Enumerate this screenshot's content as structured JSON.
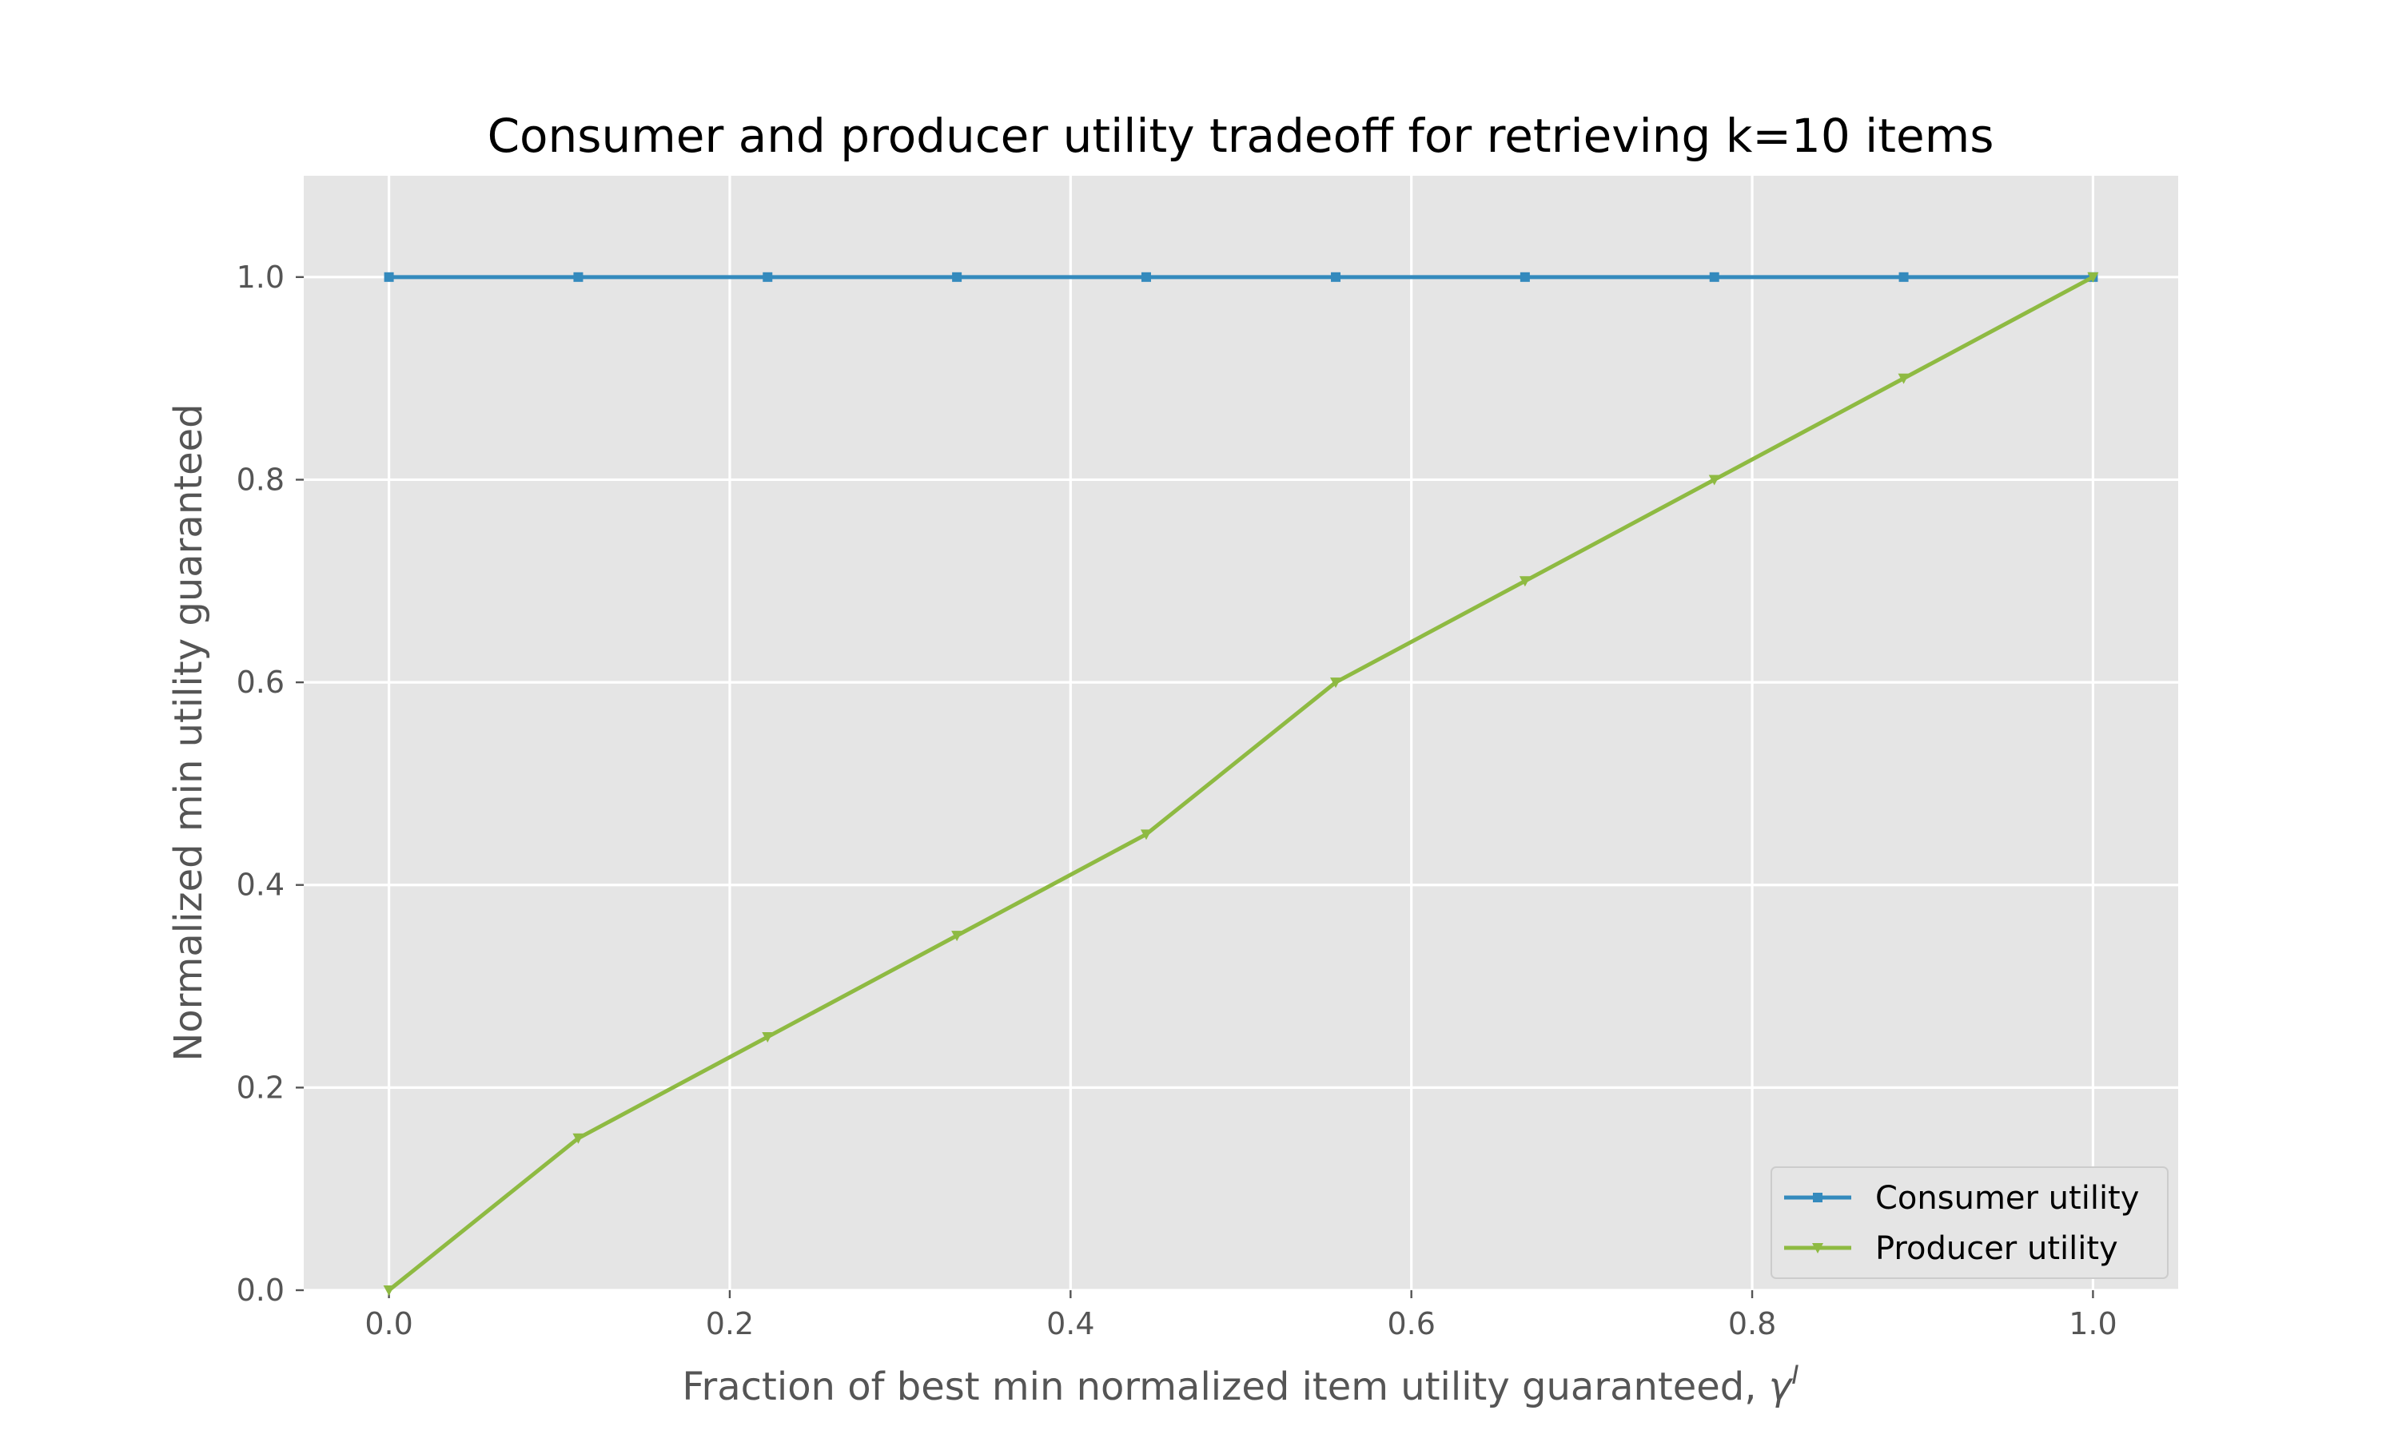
{
  "chart_data": {
    "type": "line",
    "title": "Consumer and producer utility tradeoff for retrieving k=10 items",
    "xlabel_text": "Fraction of best min normalized item utility guaranteed, ",
    "xlabel_symbol": "γ",
    "xlabel_superscript": "I",
    "ylabel": "Normalized min utility guaranteed",
    "xlim": [
      -0.05,
      1.05
    ],
    "ylim": [
      0.0,
      1.1
    ],
    "xticks": [
      0.0,
      0.2,
      0.4,
      0.6,
      0.8,
      1.0
    ],
    "xtick_labels": [
      "0.0",
      "0.2",
      "0.4",
      "0.6",
      "0.8",
      "1.0"
    ],
    "yticks": [
      0.0,
      0.2,
      0.4,
      0.6,
      0.8,
      1.0
    ],
    "ytick_labels": [
      "0.0",
      "0.2",
      "0.4",
      "0.6",
      "0.8",
      "1.0"
    ],
    "grid": true,
    "legend_position": "lower right",
    "x": [
      0.0,
      0.1111,
      0.2222,
      0.3333,
      0.4444,
      0.5556,
      0.6667,
      0.7778,
      0.8889,
      1.0
    ],
    "series": [
      {
        "name": "Consumer utility",
        "color": "#348abd",
        "marker": "square",
        "values": [
          1.0,
          1.0,
          1.0,
          1.0,
          1.0,
          1.0,
          1.0,
          1.0,
          1.0,
          1.0
        ]
      },
      {
        "name": "Producer utility",
        "color": "#8eba42",
        "marker": "triangle-down",
        "values": [
          0.0,
          0.15,
          0.25,
          0.35,
          0.45,
          0.6,
          0.7,
          0.8,
          0.9,
          1.0
        ]
      }
    ]
  }
}
